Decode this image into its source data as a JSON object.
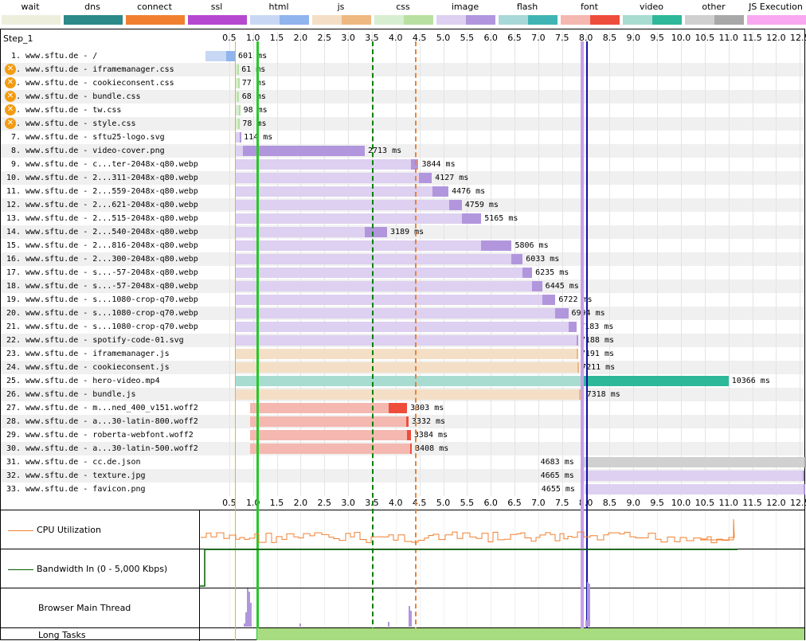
{
  "legend": [
    {
      "label": "wait",
      "light": "#eeeedd",
      "dark": "#eeeedd"
    },
    {
      "label": "dns",
      "light": "#2c8a88",
      "dark": "#2c8a88"
    },
    {
      "label": "connect",
      "light": "#f08030",
      "dark": "#f08030"
    },
    {
      "label": "ssl",
      "light": "#b648d0",
      "dark": "#b648d0"
    },
    {
      "label": "html",
      "light": "#c8d8f4",
      "dark": "#90b4ee"
    },
    {
      "label": "js",
      "light": "#f4dfc6",
      "dark": "#efb880"
    },
    {
      "label": "css",
      "light": "#d8eed0",
      "dark": "#b8e0a0"
    },
    {
      "label": "image",
      "light": "#ddd0f0",
      "dark": "#b296dd"
    },
    {
      "label": "flash",
      "light": "#a8d8d8",
      "dark": "#40b4b4"
    },
    {
      "label": "font",
      "light": "#f4b8b0",
      "dark": "#ef4d3c"
    },
    {
      "label": "video",
      "light": "#a8dcd0",
      "dark": "#2eb89a"
    },
    {
      "label": "other",
      "light": "#d0d0d0",
      "dark": "#a8a8a8"
    },
    {
      "label": "JS Execution",
      "light": "#f8a8f0",
      "dark": "#f8a8f0"
    }
  ],
  "step_label": "Step_1",
  "axis_ticks": [
    "0.5",
    "1.0",
    "1.5",
    "2.0",
    "2.5",
    "3.0",
    "3.5",
    "4.0",
    "4.5",
    "5.0",
    "5.5",
    "6.0",
    "6.5",
    "7.0",
    "7.5",
    "8.0",
    "8.5",
    "9.0",
    "9.5",
    "10.0",
    "10.5",
    "11.0",
    "11.5",
    "12.0",
    "12.5"
  ],
  "requests": [
    {
      "num": "1.",
      "label": "www.sftu.de - /",
      "ms": "601 ms",
      "warn": false,
      "type": "html",
      "start": 0.0,
      "ttfb": 0.43,
      "end": 0.62,
      "pre": true
    },
    {
      "num": "2.",
      "label": "www.sftu.de - iframemanager.css",
      "ms": "61 ms",
      "warn": true,
      "type": "css",
      "start": 0.63,
      "ttfb": 0.67,
      "end": 0.69
    },
    {
      "num": "3.",
      "label": "www.sftu.de - cookieconsent.css",
      "ms": "77 ms",
      "warn": true,
      "type": "css",
      "start": 0.63,
      "ttfb": 0.68,
      "end": 0.7
    },
    {
      "num": "4.",
      "label": "www.sftu.de - bundle.css",
      "ms": "68 ms",
      "warn": true,
      "type": "css",
      "start": 0.63,
      "ttfb": 0.67,
      "end": 0.7
    },
    {
      "num": "5.",
      "label": "www.sftu.de - tw.css",
      "ms": "98 ms",
      "warn": true,
      "type": "css",
      "start": 0.63,
      "ttfb": 0.7,
      "end": 0.73
    },
    {
      "num": "6.",
      "label": "www.sftu.de - style.css",
      "ms": "78 ms",
      "warn": true,
      "type": "css",
      "start": 0.63,
      "ttfb": 0.68,
      "end": 0.71
    },
    {
      "num": "7.",
      "label": "www.sftu.de - sftu25-logo.svg",
      "ms": "114 ms",
      "warn": false,
      "type": "image",
      "start": 0.63,
      "ttfb": 0.72,
      "end": 0.74
    },
    {
      "num": "8.",
      "label": "www.sftu.de - video-cover.png",
      "ms": "2713 ms",
      "warn": false,
      "type": "image",
      "start": 0.63,
      "ttfb": 0.78,
      "end": 3.35
    },
    {
      "num": "9.",
      "label": "www.sftu.de - c...ter-2048x-q80.webp",
      "ms": "3844 ms",
      "warn": false,
      "type": "image",
      "start": 0.63,
      "ttfb": 4.32,
      "end": 4.48
    },
    {
      "num": "10.",
      "label": "www.sftu.de - 2...311-2048x-q80.webp",
      "ms": "4127 ms",
      "warn": false,
      "type": "image",
      "start": 0.63,
      "ttfb": 4.49,
      "end": 4.76
    },
    {
      "num": "11.",
      "label": "www.sftu.de - 2...559-2048x-q80.webp",
      "ms": "4476 ms",
      "warn": false,
      "type": "image",
      "start": 0.63,
      "ttfb": 4.77,
      "end": 5.11
    },
    {
      "num": "12.",
      "label": "www.sftu.de - 2...621-2048x-q80.webp",
      "ms": "4759 ms",
      "warn": false,
      "type": "image",
      "start": 0.63,
      "ttfb": 5.12,
      "end": 5.39
    },
    {
      "num": "13.",
      "label": "www.sftu.de - 2...515-2048x-q80.webp",
      "ms": "5165 ms",
      "warn": false,
      "type": "image",
      "start": 0.63,
      "ttfb": 5.4,
      "end": 5.8
    },
    {
      "num": "14.",
      "label": "www.sftu.de - 2...540-2048x-q80.webp",
      "ms": "3189 ms",
      "warn": false,
      "type": "image",
      "start": 0.63,
      "ttfb": 3.35,
      "end": 3.82
    },
    {
      "num": "15.",
      "label": "www.sftu.de - 2...816-2048x-q80.webp",
      "ms": "5806 ms",
      "warn": false,
      "type": "image",
      "start": 0.63,
      "ttfb": 5.8,
      "end": 6.44
    },
    {
      "num": "16.",
      "label": "www.sftu.de - 2...300-2048x-q80.webp",
      "ms": "6033 ms",
      "warn": false,
      "type": "image",
      "start": 0.63,
      "ttfb": 6.44,
      "end": 6.67
    },
    {
      "num": "17.",
      "label": "www.sftu.de - s...-57-2048x-q80.webp",
      "ms": "6235 ms",
      "warn": false,
      "type": "image",
      "start": 0.63,
      "ttfb": 6.67,
      "end": 6.87
    },
    {
      "num": "18.",
      "label": "www.sftu.de - s...-57-2048x-q80.webp",
      "ms": "6445 ms",
      "warn": false,
      "type": "image",
      "start": 0.63,
      "ttfb": 6.87,
      "end": 7.08
    },
    {
      "num": "19.",
      "label": "www.sftu.de - s...1080-crop-q70.webp",
      "ms": "6722 ms",
      "warn": false,
      "type": "image",
      "start": 0.63,
      "ttfb": 7.08,
      "end": 7.36
    },
    {
      "num": "20.",
      "label": "www.sftu.de - s...1080-crop-q70.webp",
      "ms": "6994 ms",
      "warn": false,
      "type": "image",
      "start": 0.63,
      "ttfb": 7.36,
      "end": 7.63
    },
    {
      "num": "21.",
      "label": "www.sftu.de - s...1080-crop-q70.webp",
      "ms": "7183 ms",
      "warn": false,
      "type": "image",
      "start": 0.63,
      "ttfb": 7.63,
      "end": 7.81
    },
    {
      "num": "22.",
      "label": "www.sftu.de - spotify-code-01.svg",
      "ms": "7188 ms",
      "warn": false,
      "type": "image",
      "start": 0.63,
      "ttfb": 7.8,
      "end": 7.82
    },
    {
      "num": "23.",
      "label": "www.sftu.de - iframemanager.js",
      "ms": "7191 ms",
      "warn": false,
      "type": "js",
      "start": 0.63,
      "ttfb": 7.8,
      "end": 7.82
    },
    {
      "num": "24.",
      "label": "www.sftu.de - cookieconsent.js",
      "ms": "7211 ms",
      "warn": false,
      "type": "js",
      "start": 0.63,
      "ttfb": 7.82,
      "end": 7.84
    },
    {
      "num": "25.",
      "label": "www.sftu.de - hero-video.mp4",
      "ms": "10366 ms",
      "warn": false,
      "type": "video",
      "start": 0.63,
      "ttfb": 7.95,
      "end": 11.0
    },
    {
      "num": "26.",
      "label": "www.sftu.de - bundle.js",
      "ms": "7318 ms",
      "warn": false,
      "type": "js",
      "start": 0.63,
      "ttfb": 7.85,
      "end": 7.95
    },
    {
      "num": "27.",
      "label": "www.sftu.de - m...ned_400_v151.woff2",
      "ms": "3303 ms",
      "warn": false,
      "type": "font",
      "start": 0.93,
      "ttfb": 3.85,
      "end": 4.24
    },
    {
      "num": "28.",
      "label": "www.sftu.de - a...30-latin-800.woff2",
      "ms": "3332 ms",
      "warn": false,
      "type": "font",
      "start": 0.93,
      "ttfb": 4.22,
      "end": 4.27
    },
    {
      "num": "29.",
      "label": "www.sftu.de - roberta-webfont.woff2",
      "ms": "3384 ms",
      "warn": false,
      "type": "font",
      "start": 0.93,
      "ttfb": 4.24,
      "end": 4.32
    },
    {
      "num": "30.",
      "label": "www.sftu.de - a...30-latin-500.woff2",
      "ms": "3408 ms",
      "warn": false,
      "type": "font",
      "start": 0.93,
      "ttfb": 4.3,
      "end": 4.34
    },
    {
      "num": "31.",
      "label": "www.sftu.de - cc.de.json",
      "ms": "4683 ms",
      "warn": false,
      "type": "other",
      "start": 7.95,
      "ttfb": 12.6,
      "end": 12.63,
      "ms_left": true
    },
    {
      "num": "32.",
      "label": "www.sftu.de - texture.jpg",
      "ms": "4665 ms",
      "warn": false,
      "type": "image",
      "start": 7.95,
      "ttfb": 12.56,
      "end": 12.6,
      "ms_left": true
    },
    {
      "num": "33.",
      "label": "www.sftu.de - favicon.png",
      "ms": "4655 ms",
      "warn": false,
      "type": "image",
      "start": 7.97,
      "ttfb": 12.58,
      "end": 12.62,
      "ms_left": true
    }
  ],
  "markers": [
    {
      "name": "first-paint-marker",
      "time": 0.62,
      "color": "#f4b400",
      "style": "solid",
      "width": 1
    },
    {
      "name": "start-render-marker",
      "time": 1.09,
      "color": "#28c828",
      "style": "solid",
      "width": 3
    },
    {
      "name": "dom-content-loaded-marker",
      "time": 3.52,
      "color": "#008000",
      "style": "dashed",
      "width": 2
    },
    {
      "name": "dom-interactive-marker",
      "time": 4.43,
      "color": "#f08030",
      "style": "dashed",
      "width": 2
    },
    {
      "name": "lcp-marker",
      "time": 7.93,
      "color": "#c8a0e8",
      "style": "solid",
      "width": 4
    },
    {
      "name": "onload-marker",
      "time": 8.02,
      "color": "#1010a0",
      "style": "solid",
      "width": 2
    }
  ],
  "sections": {
    "cpu_label": "CPU Utilization",
    "bandwidth_label": "Bandwidth In (0 - 5,000 Kbps)",
    "main_thread_label": "Browser Main Thread",
    "long_tasks_label": "Long Tasks"
  },
  "colors": {
    "cpu_line": "#f08030",
    "bandwidth_line": "#006000",
    "long_tasks": "#a8dc80",
    "grid_alt": "#f0f0f0"
  }
}
